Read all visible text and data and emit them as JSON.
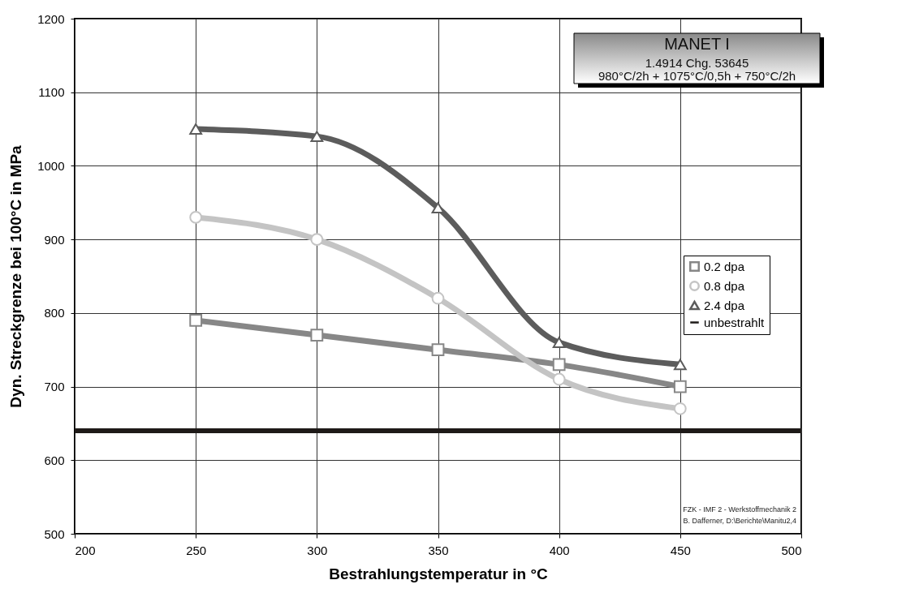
{
  "chart_data": {
    "type": "line",
    "title": "MANET I",
    "subtitle": "1.4914  Chg. 53645",
    "xlabel": "Bestrahlungstemperatur in °C",
    "ylabel": "Dyn. Streckgrenze bei 100°C in MPa",
    "annotations": [
      "980°C/2h + 1075°C/0,5h + 750°C/2h",
      "FZK - IMF 2 - Werkstoffmechanik 2",
      "B. Dafferner, D:\\Berichte\\Manitu2,4"
    ],
    "x": [
      250,
      300,
      350,
      400,
      450
    ],
    "series": [
      {
        "name": "0.2 dpa",
        "color": "#878787",
        "marker": "square",
        "values": [
          790,
          770,
          750,
          730,
          700
        ]
      },
      {
        "name": "0.8 dpa",
        "color": "#c4c4c4",
        "marker": "circle",
        "values": [
          930,
          900,
          820,
          710,
          670
        ]
      },
      {
        "name": "2.4 dpa",
        "color": "#5c5c5c",
        "marker": "triangle",
        "values": [
          1050,
          1040,
          943,
          760,
          730
        ]
      }
    ],
    "ref_lines": [
      {
        "axis": "y",
        "value": 640,
        "label": "unbestrahlt",
        "color": "#1e1a18"
      }
    ],
    "xlim": [
      200,
      500
    ],
    "xticks": [
      200,
      250,
      300,
      350,
      400,
      450,
      500
    ],
    "ylim": [
      500,
      1200
    ],
    "yticks": [
      500,
      600,
      700,
      800,
      900,
      1000,
      1100,
      1200
    ],
    "grid": true,
    "legend": "right",
    "line_style": "solid"
  }
}
